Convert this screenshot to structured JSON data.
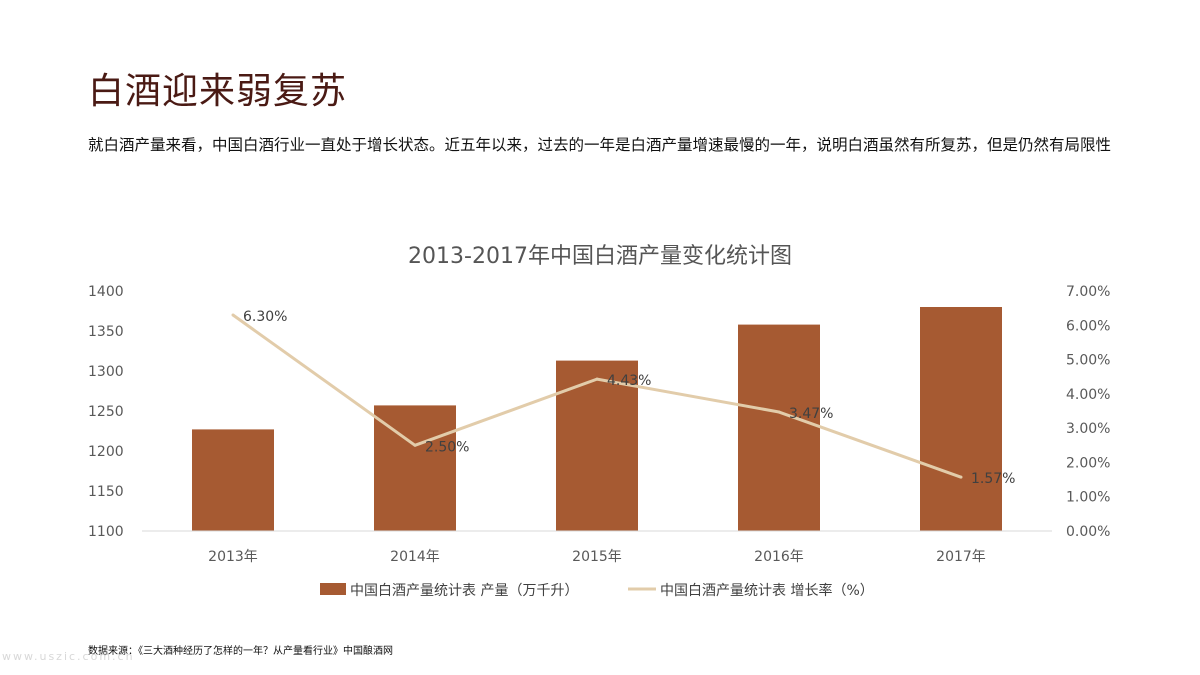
{
  "page": {
    "title": "白酒迎来弱复苏",
    "description": "就白酒产量来看，中国白酒行业一直处于增长状态。近五年以来，过去的一年是白酒产量增速最慢的一年，说明白酒虽然有所复苏，但是仍然有局限性",
    "source": "数据来源：《三大酒种经历了怎样的一年？从产量看行业》中国酿酒网",
    "watermark": "www.uszic.com.cn"
  },
  "chart_data": {
    "type": "bar",
    "title": "2013-2017年中国白酒产量变化统计图",
    "categories": [
      "2013年",
      "2014年",
      "2015年",
      "2016年",
      "2017年"
    ],
    "series": [
      {
        "name": "中国白酒产量统计表 产量（万千升）",
        "type": "bar",
        "axis": "left",
        "color": "#a65a32",
        "values": [
          1227,
          1257,
          1313,
          1358,
          1380
        ]
      },
      {
        "name": "中国白酒产量统计表 增长率（%）",
        "type": "line",
        "axis": "right",
        "color": "#e2ccaa",
        "values": [
          6.3,
          2.5,
          4.43,
          3.47,
          1.57
        ],
        "labels": [
          "6.30%",
          "2.50%",
          "4.43%",
          "3.47%",
          "1.57%"
        ]
      }
    ],
    "y_left": {
      "ylim": [
        1100,
        1400
      ],
      "ticks": [
        1100,
        1150,
        1200,
        1250,
        1300,
        1350,
        1400
      ],
      "tick_labels": [
        "1100",
        "1150",
        "1200",
        "1250",
        "1300",
        "1350",
        "1400"
      ]
    },
    "y_right": {
      "ylim": [
        0,
        7
      ],
      "ticks": [
        0,
        1,
        2,
        3,
        4,
        5,
        6,
        7
      ],
      "tick_labels": [
        "0.00%",
        "1.00%",
        "2.00%",
        "3.00%",
        "4.00%",
        "5.00%",
        "6.00%",
        "7.00%"
      ]
    },
    "grid": false,
    "legend": "bottom"
  }
}
